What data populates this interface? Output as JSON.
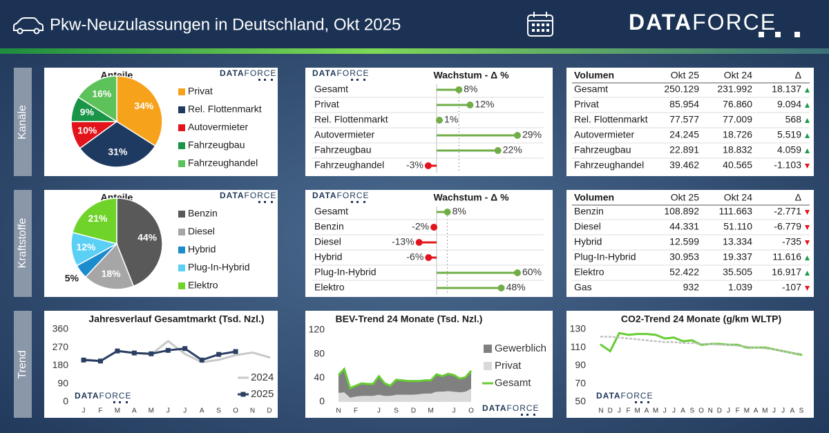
{
  "header": {
    "title": "Pkw-Neuzulassungen in Deutschland, Okt 2025"
  },
  "logo": {
    "bold": "DATA",
    "light": "FORCE"
  },
  "sections": [
    "Kanäle",
    "Kraftstoffe",
    "Trend"
  ],
  "chart_data": [
    {
      "type": "pie",
      "title": "Anteile",
      "categories": [
        "Privat",
        "Rel. Flottenmarkt",
        "Autovermieter",
        "Fahrzeugbau",
        "Fahrzeughandel"
      ],
      "values": [
        34,
        31,
        10,
        9,
        16
      ],
      "value_labels": [
        "34%",
        "31%",
        "10%",
        "9%",
        "16%"
      ],
      "colors": [
        "#f7a21b",
        "#1f3a60",
        "#e3131b",
        "#1a9447",
        "#5ec25a"
      ]
    },
    {
      "type": "lollipop",
      "title": "Wachstum - Δ %",
      "categories": [
        "Gesamt",
        "Privat",
        "Rel. Flottenmarkt",
        "Autovermieter",
        "Fahrzeugbau",
        "Fahrzeughandel"
      ],
      "values": [
        8,
        12,
        1,
        29,
        22,
        -3
      ],
      "value_labels": [
        "8%",
        "12%",
        "1%",
        "29%",
        "22%",
        "-3%"
      ],
      "color": "#70ad47",
      "negative_color": "#e3131b"
    },
    {
      "type": "table",
      "columns": [
        "Volumen",
        "Okt 25",
        "Okt 24",
        "Δ"
      ],
      "rows": [
        [
          "Gesamt",
          "250.129",
          "231.992",
          "18.137"
        ],
        [
          "Privat",
          "85.954",
          "76.860",
          "9.094"
        ],
        [
          "Rel. Flottenmarkt",
          "77.577",
          "77.009",
          "568"
        ],
        [
          "Autovermieter",
          "24.245",
          "18.726",
          "5.519"
        ],
        [
          "Fahrzeugbau",
          "22.891",
          "18.832",
          "4.059"
        ],
        [
          "Fahrzeughandel",
          "39.462",
          "40.565",
          "-1.103"
        ]
      ],
      "up_color": "#1a9a4a",
      "down_color": "#e3131b"
    },
    {
      "type": "pie",
      "title": "Anteile",
      "categories": [
        "Benzin",
        "Diesel",
        "Hybrid",
        "Plug-In-Hybrid",
        "Elektro"
      ],
      "values": [
        44,
        18,
        5,
        12,
        21
      ],
      "value_labels": [
        "44%",
        "18%",
        "5%",
        "12%",
        "21%"
      ],
      "colors": [
        "#595959",
        "#a6a6a6",
        "#1b8ccc",
        "#5bd0f5",
        "#6fd32a"
      ]
    },
    {
      "type": "lollipop",
      "title": "Wachstum - Δ %",
      "categories": [
        "Gesamt",
        "Benzin",
        "Diesel",
        "Hybrid",
        "Plug-In-Hybrid",
        "Elektro"
      ],
      "values": [
        8,
        -2,
        -13,
        -6,
        60,
        48
      ],
      "value_labels": [
        "8%",
        "-2%",
        "-13%",
        "-6%",
        "60%",
        "48%"
      ],
      "color": "#70ad47",
      "negative_color": "#e3131b"
    },
    {
      "type": "table",
      "columns": [
        "Volumen",
        "Okt 25",
        "Okt 24",
        "Δ"
      ],
      "rows": [
        [
          "Benzin",
          "108.892",
          "111.663",
          "-2.771"
        ],
        [
          "Diesel",
          "44.331",
          "51.110",
          "-6.779"
        ],
        [
          "Hybrid",
          "12.599",
          "13.334",
          "-735"
        ],
        [
          "Plug-In-Hybrid",
          "30.953",
          "19.337",
          "11.616"
        ],
        [
          "Elektro",
          "52.422",
          "35.505",
          "16.917"
        ],
        [
          "Gas",
          "932",
          "1.039",
          "-107"
        ]
      ],
      "up_color": "#1a9a4a",
      "down_color": "#e3131b"
    },
    {
      "type": "line",
      "title": "Jahresverlauf Gesamtmarkt (Tsd. Nzl.)",
      "categories": [
        "J",
        "F",
        "M",
        "A",
        "M",
        "J",
        "J",
        "A",
        "S",
        "O",
        "N",
        "D"
      ],
      "series": [
        {
          "name": "2024",
          "color": "#c8c8c8",
          "values": [
            213,
            203,
            254,
            243,
            236,
            302,
            238,
            197,
            209,
            232,
            245,
            221
          ]
        },
        {
          "name": "2025",
          "color": "#2b3f63",
          "marker": true,
          "values": [
            208,
            203,
            253,
            243,
            239,
            256,
            265,
            208,
            236,
            250,
            null,
            null
          ]
        }
      ],
      "ylim": [
        0,
        360
      ],
      "yticks": [
        0,
        90,
        180,
        270,
        360
      ]
    },
    {
      "type": "area",
      "title": "BEV-Trend 24 Monate (Tsd. Nzl.)",
      "categories": [
        "N",
        null,
        null,
        "F",
        null,
        null,
        null,
        "J",
        null,
        null,
        "S",
        null,
        null,
        "D",
        null,
        null,
        "M",
        null,
        null,
        null,
        "J",
        null,
        null,
        "O"
      ],
      "series": [
        {
          "name": "Gewerblich",
          "kind": "area",
          "color": "#808080",
          "values": [
            30,
            39,
            16,
            18,
            21,
            20,
            20,
            31,
            21,
            17,
            25,
            24,
            23,
            23,
            22,
            22,
            22,
            29,
            26,
            29,
            28,
            23,
            24,
            30
          ]
        },
        {
          "name": "Privat",
          "kind": "area",
          "color": "#d9d9d9",
          "values": [
            15,
            16,
            7,
            9,
            10,
            10,
            10,
            12,
            10,
            10,
            12,
            12,
            12,
            12,
            13,
            14,
            14,
            17,
            17,
            18,
            17,
            16,
            17,
            22
          ]
        },
        {
          "name": "Gesamt",
          "kind": "line",
          "color": "#66cc33",
          "values": [
            45,
            55,
            23,
            27,
            31,
            30,
            30,
            43,
            31,
            27,
            37,
            36,
            35,
            35,
            35,
            36,
            36,
            46,
            43,
            47,
            45,
            39,
            41,
            52
          ]
        }
      ],
      "ylim": [
        0,
        120
      ],
      "yticks": [
        0,
        40,
        80,
        120
      ]
    },
    {
      "type": "line",
      "title": "CO2-Trend 24 Monate (g/km WLTP)",
      "categories": [
        "N",
        "D",
        "J",
        "F",
        "M",
        "A",
        "M",
        "J",
        "J",
        "A",
        "S",
        "O",
        "N",
        "D",
        "J",
        "F",
        "M",
        "A",
        "M",
        "J",
        "J",
        "A",
        "S"
      ],
      "series": [
        {
          "color": "#66cc33",
          "values": [
            113,
            106,
            126,
            124,
            125,
            125,
            124,
            120,
            121,
            117,
            118,
            113,
            114,
            114,
            113,
            113,
            110,
            110,
            110,
            108,
            106,
            104,
            102
          ]
        },
        {
          "color": "#bfbfbf",
          "dash": true,
          "values": [
            122,
            122,
            121,
            120,
            119,
            118,
            117,
            116,
            116,
            115,
            115,
            114,
            114,
            113,
            113,
            112,
            111,
            110,
            109,
            108,
            106,
            104,
            103
          ]
        }
      ],
      "ylim": [
        50,
        130
      ],
      "yticks": [
        50,
        70,
        90,
        110,
        130
      ]
    }
  ]
}
